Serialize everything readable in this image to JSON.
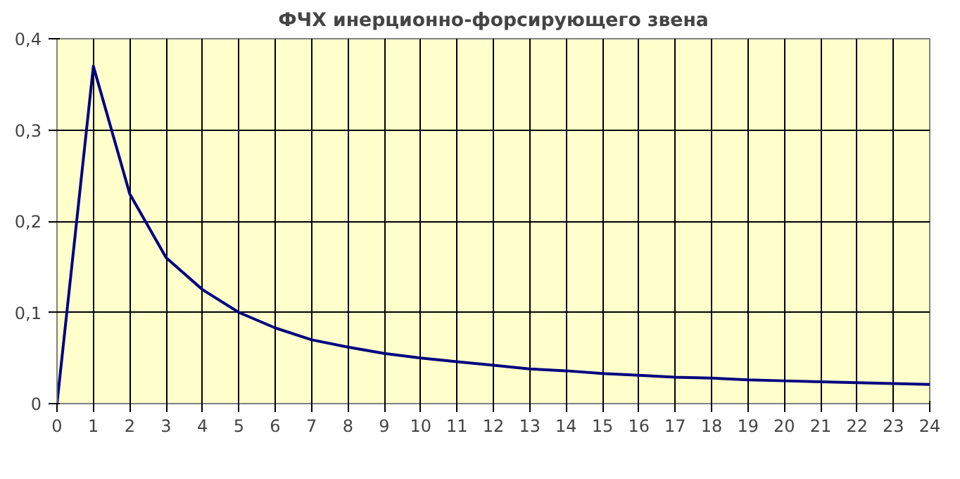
{
  "chart_data": {
    "type": "line",
    "title": "ФЧХ инерционно-форсирующего звена",
    "x": [
      0,
      1,
      2,
      3,
      4,
      5,
      6,
      7,
      8,
      9,
      10,
      11,
      12,
      13,
      14,
      15,
      16,
      17,
      18,
      19,
      20,
      21,
      22,
      23,
      24
    ],
    "series": [
      {
        "color": "#000080",
        "values": [
          0,
          0.37,
          0.23,
          0.16,
          0.125,
          0.1,
          0.083,
          0.07,
          0.062,
          0.055,
          0.05,
          0.046,
          0.042,
          0.038,
          0.036,
          0.033,
          0.031,
          0.029,
          0.028,
          0.026,
          0.025,
          0.024,
          0.023,
          0.022,
          0.021
        ]
      }
    ],
    "xlim": [
      0,
      24
    ],
    "xticks": [
      0,
      1,
      2,
      3,
      4,
      5,
      6,
      7,
      8,
      9,
      10,
      11,
      12,
      13,
      14,
      15,
      16,
      17,
      18,
      19,
      20,
      21,
      22,
      23,
      24
    ],
    "ylim": [
      0,
      0.4
    ],
    "yticks": [
      0,
      {
        "value": 0.1,
        "label": "0,1"
      },
      {
        "value": 0.2,
        "label": "0,2"
      },
      {
        "value": 0.3,
        "label": "0,3"
      },
      {
        "value": 0.4,
        "label": "0,4"
      }
    ],
    "grid": true,
    "marker": "none",
    "line_style": "solid"
  }
}
